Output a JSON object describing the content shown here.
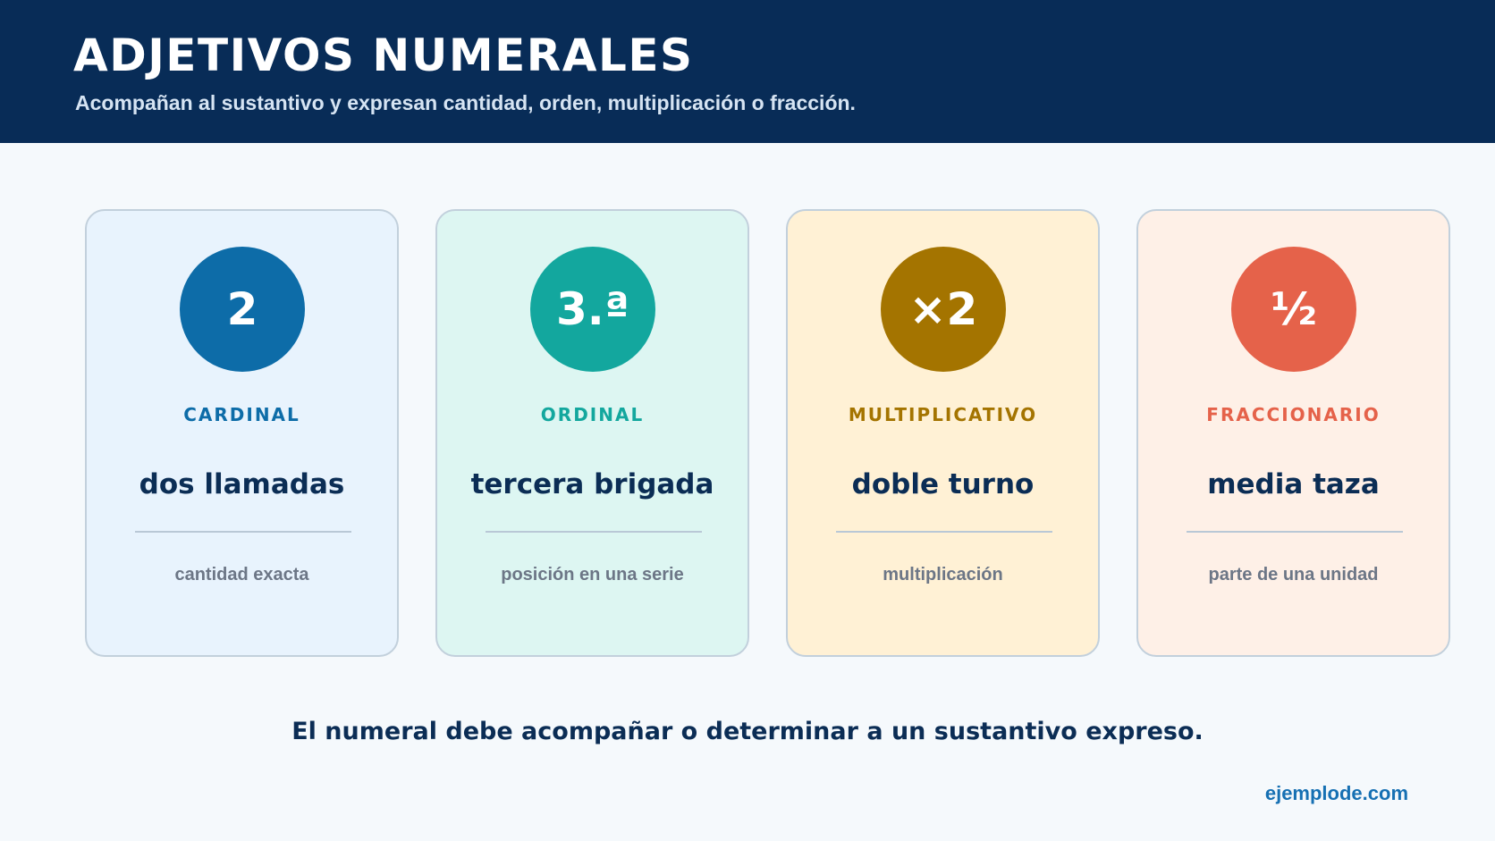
{
  "header": {
    "title": "ADJETIVOS NUMERALES",
    "subtitle": "Acompañan al sustantivo y expresan cantidad, orden, multiplicación o fracción."
  },
  "cards": [
    {
      "symbol": "2",
      "category": "CARDINAL",
      "example": "dos llamadas",
      "description": "cantidad exacta",
      "accent": "#0d6ca8",
      "background": "#e8f3fd"
    },
    {
      "symbol": "3.ª",
      "category": "ORDINAL",
      "example": "tercera brigada",
      "description": "posición en una serie",
      "accent": "#13a79e",
      "background": "#ddf6f2"
    },
    {
      "symbol": "×2",
      "category": "MULTIPLICATIVO",
      "example": "doble turno",
      "description": "multiplicación",
      "accent": "#a47400",
      "background": "#fff1d5"
    },
    {
      "symbol": "½",
      "category": "FRACCIONARIO",
      "example": "media taza",
      "description": "parte de una unidad",
      "accent": "#e5624a",
      "background": "#fef0e7"
    }
  ],
  "note": "El numeral debe acompañar o determinar a un sustantivo expreso.",
  "source": "ejemplode.com"
}
